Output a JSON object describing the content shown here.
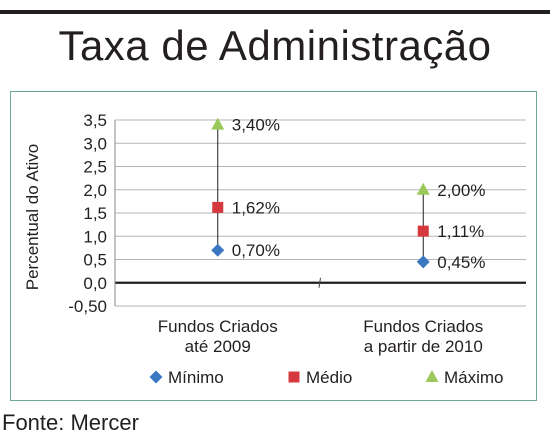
{
  "title": "Taxa de Administração",
  "source": "Fonte: Mercer",
  "chart_data": {
    "type": "scatter",
    "title": "Taxa de Administração",
    "ylabel": "Percentual do Ativo",
    "xlabel": "",
    "ylim": [
      -0.5,
      3.5
    ],
    "yticks": [
      "-0,50",
      "0,0",
      "0,5",
      "1,0",
      "1,5",
      "2,0",
      "2,5",
      "3,0",
      "3,5"
    ],
    "categories": [
      [
        "Fundos Criados",
        "até 2009"
      ],
      [
        "Fundos Criados",
        "a partir de 2010"
      ]
    ],
    "grid": true,
    "legend_position": "bottom",
    "series": [
      {
        "name": "Mínimo",
        "marker": "diamond",
        "color": "#3b78c2",
        "values": [
          0.7,
          0.45
        ],
        "labels": [
          "0,70%",
          "0,45%"
        ]
      },
      {
        "name": "Médio",
        "marker": "square",
        "color": "#d6393d",
        "values": [
          1.62,
          1.11
        ],
        "labels": [
          "1,62%",
          "1,11%"
        ]
      },
      {
        "name": "Máximo",
        "marker": "triangle",
        "color": "#9bc85a",
        "values": [
          3.4,
          2.0
        ],
        "labels": [
          "3,40%",
          "2,00%"
        ]
      }
    ]
  }
}
